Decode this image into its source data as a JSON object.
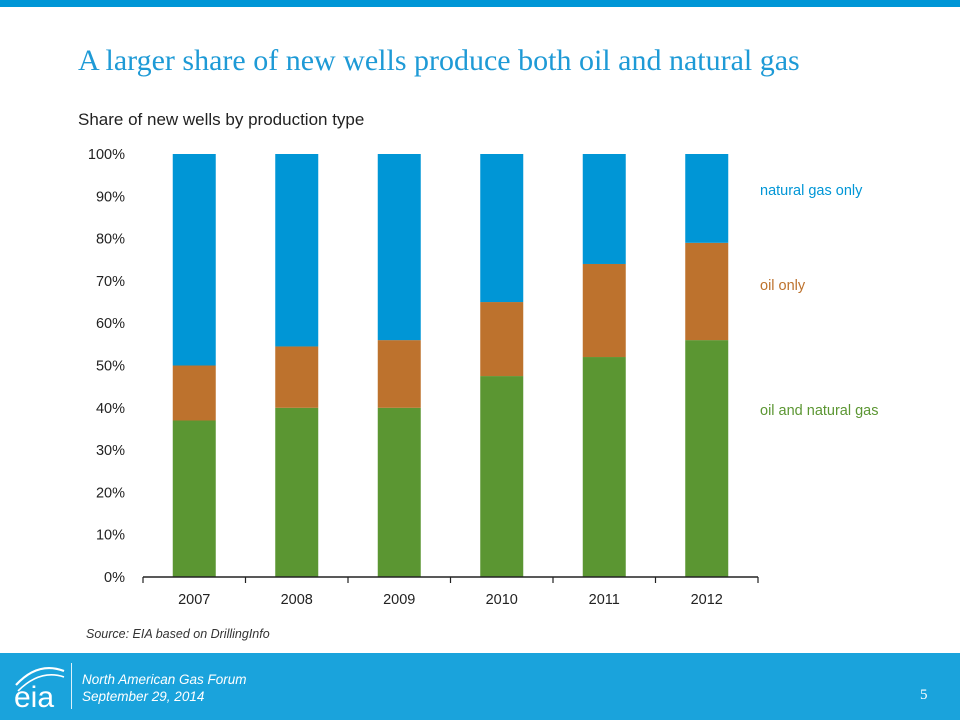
{
  "slide": {
    "title": "A larger share of new wells produce both oil and natural gas",
    "source": "Source: EIA based on DrillingInfo"
  },
  "footer": {
    "logo_text": "eia",
    "event": "North American Gas Forum",
    "date": "September 29, 2014",
    "page_number": "5"
  },
  "colors": {
    "accent": "#0096d6",
    "footer": "#1aa3dc",
    "natural_gas_only": "#0096d6",
    "oil_only": "#bd722d",
    "oil_and_natural_gas": "#5b9632"
  },
  "chart_data": {
    "type": "bar",
    "stacked": true,
    "title": "Share of new wells by production type",
    "categories": [
      "2007",
      "2008",
      "2009",
      "2010",
      "2011",
      "2012"
    ],
    "series": [
      {
        "name": "oil and natural gas",
        "color": "#5b9632",
        "values": [
          37,
          40,
          40,
          47.5,
          52,
          56
        ]
      },
      {
        "name": "oil only",
        "color": "#bd722d",
        "values": [
          13,
          14.5,
          16,
          17.5,
          22,
          23
        ]
      },
      {
        "name": "natural gas only",
        "color": "#0096d6",
        "values": [
          50,
          45.5,
          44,
          35,
          26,
          21
        ]
      }
    ],
    "ylim": [
      0,
      100
    ],
    "yticks": [
      "0%",
      "10%",
      "20%",
      "30%",
      "40%",
      "50%",
      "60%",
      "70%",
      "80%",
      "90%",
      "100%"
    ],
    "grid": false,
    "legend_position": "right"
  }
}
